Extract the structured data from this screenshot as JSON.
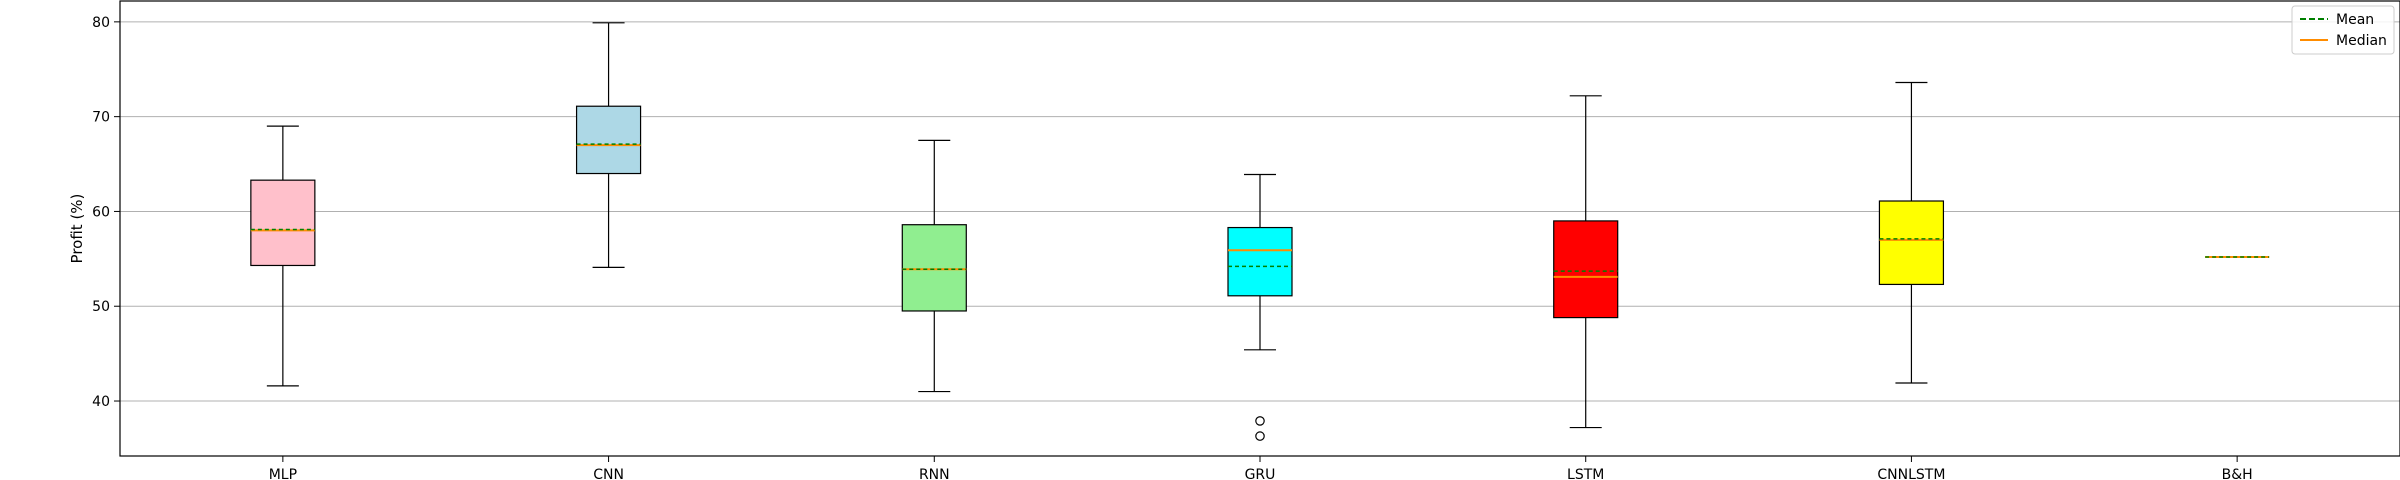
{
  "chart_data": {
    "type": "box",
    "title": "",
    "xlabel": "",
    "ylabel": "Profit (%)",
    "ylim": [
      34.2,
      82.2
    ],
    "yticks": [
      40,
      50,
      60,
      70,
      80
    ],
    "grid": "horizontal",
    "legend_position": "top-right",
    "legend": [
      {
        "label": "Mean",
        "color": "#008000",
        "style": "dashed"
      },
      {
        "label": "Median",
        "color": "#ff8c00",
        "style": "solid"
      }
    ],
    "categories": [
      "MLP",
      "CNN",
      "RNN",
      "GRU",
      "LSTM",
      "CNNLSTM",
      "B&H"
    ],
    "boxes": [
      {
        "label": "MLP",
        "color": "#ffc0cb",
        "whislo": 41.6,
        "q1": 54.3,
        "median": 58.0,
        "mean": 58.1,
        "q3": 63.3,
        "whishi": 69.0,
        "fliers": []
      },
      {
        "label": "CNN",
        "color": "#add8e6",
        "whislo": 54.1,
        "q1": 64.0,
        "median": 67.0,
        "mean": 67.1,
        "q3": 71.1,
        "whishi": 79.9,
        "fliers": []
      },
      {
        "label": "RNN",
        "color": "#90ee90",
        "whislo": 41.0,
        "q1": 49.5,
        "median": 53.9,
        "mean": 53.9,
        "q3": 58.6,
        "whishi": 67.5,
        "fliers": []
      },
      {
        "label": "GRU",
        "color": "#00ffff",
        "whislo": 45.4,
        "q1": 51.1,
        "median": 55.9,
        "mean": 54.2,
        "q3": 58.3,
        "whishi": 63.9,
        "fliers": [
          37.9,
          36.3
        ]
      },
      {
        "label": "LSTM",
        "color": "#ff0000",
        "whislo": 37.2,
        "q1": 48.8,
        "median": 53.1,
        "mean": 53.7,
        "q3": 59.0,
        "whishi": 72.2,
        "fliers": []
      },
      {
        "label": "CNNLSTM",
        "color": "#ffff00",
        "whislo": 41.9,
        "q1": 52.3,
        "median": 57.0,
        "mean": 57.1,
        "q3": 61.1,
        "whishi": 73.6,
        "fliers": []
      },
      {
        "label": "B&H",
        "color": "#ffffff",
        "whislo": 55.2,
        "q1": 55.2,
        "median": 55.2,
        "mean": 55.2,
        "q3": 55.2,
        "whishi": 55.2,
        "fliers": []
      }
    ]
  }
}
